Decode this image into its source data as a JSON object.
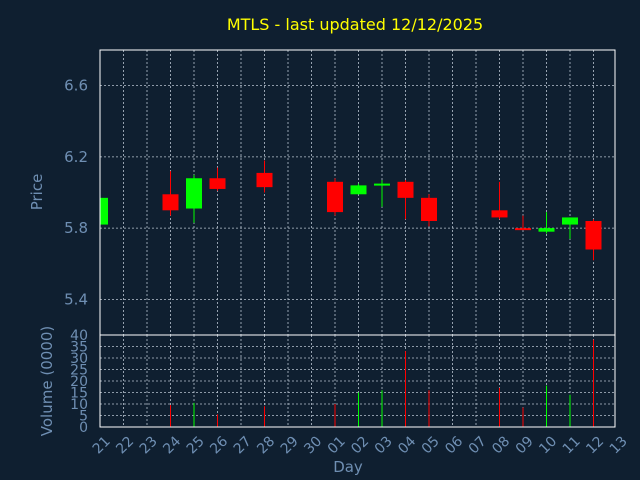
{
  "chart_data": {
    "type": "candlestick",
    "title": "MTLS - last updated 12/12/2025",
    "ylabel": "Price",
    "volume_ylabel": "Volume (0000)",
    "xlabel": "Day",
    "price_ylim": [
      5.2,
      6.8
    ],
    "price_yticks": [
      5.4,
      5.8,
      6.2,
      6.6
    ],
    "volume_ylim": [
      0,
      40
    ],
    "volume_yticks": [
      0,
      5,
      10,
      15,
      20,
      25,
      30,
      35,
      40
    ],
    "x_ticks": [
      "21",
      "22",
      "23",
      "24",
      "25",
      "26",
      "27",
      "28",
      "29",
      "30",
      "01",
      "02",
      "03",
      "04",
      "05",
      "06",
      "07",
      "08",
      "09",
      "10",
      "11",
      "12",
      "13"
    ],
    "up_color": "#00ff00",
    "down_color": "#ff0000",
    "candles": [
      {
        "day_index": 0,
        "open": 5.82,
        "high": 5.97,
        "low": 5.82,
        "close": 5.97,
        "volume": 0
      },
      {
        "day_index": 3,
        "open": 5.99,
        "high": 6.12,
        "low": 5.87,
        "close": 5.9,
        "volume": 9.5
      },
      {
        "day_index": 4,
        "open": 5.91,
        "high": 6.1,
        "low": 5.83,
        "close": 6.08,
        "volume": 10.5
      },
      {
        "day_index": 5,
        "open": 6.08,
        "high": 6.14,
        "low": 6.01,
        "close": 6.02,
        "volume": 5.5
      },
      {
        "day_index": 7,
        "open": 6.11,
        "high": 6.18,
        "low": 6.0,
        "close": 6.03,
        "volume": 9.0
      },
      {
        "day_index": 10,
        "open": 6.06,
        "high": 6.08,
        "low": 5.87,
        "close": 5.89,
        "volume": 10.0
      },
      {
        "day_index": 11,
        "open": 5.99,
        "high": 6.05,
        "low": 5.99,
        "close": 6.04,
        "volume": 15.0
      },
      {
        "day_index": 12,
        "open": 6.04,
        "high": 6.07,
        "low": 5.92,
        "close": 6.05,
        "volume": 16.0
      },
      {
        "day_index": 13,
        "open": 6.06,
        "high": 6.07,
        "low": 5.85,
        "close": 5.97,
        "volume": 33.0
      },
      {
        "day_index": 14,
        "open": 5.97,
        "high": 5.99,
        "low": 5.81,
        "close": 5.84,
        "volume": 16.0
      },
      {
        "day_index": 17,
        "open": 5.9,
        "high": 6.06,
        "low": 5.85,
        "close": 5.86,
        "volume": 17.0
      },
      {
        "day_index": 18,
        "open": 5.8,
        "high": 5.87,
        "low": 5.79,
        "close": 5.79,
        "volume": 8.5
      },
      {
        "day_index": 19,
        "open": 5.78,
        "high": 5.89,
        "low": 5.77,
        "close": 5.8,
        "volume": 18.0
      },
      {
        "day_index": 20,
        "open": 5.82,
        "high": 5.86,
        "low": 5.74,
        "close": 5.86,
        "volume": 14.0
      },
      {
        "day_index": 21,
        "open": 5.84,
        "high": 5.85,
        "low": 5.62,
        "close": 5.68,
        "volume": 38.0
      }
    ]
  }
}
